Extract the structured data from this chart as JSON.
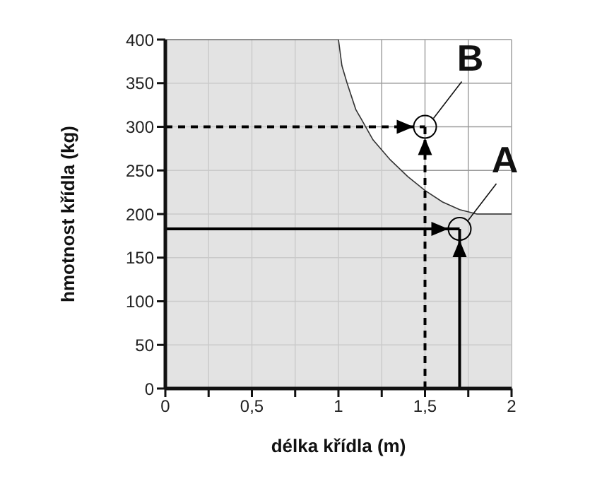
{
  "chart_data": {
    "type": "area",
    "xlabel": "délka křídla (m)",
    "ylabel": "hmotnost křídla (kg)",
    "xlim": [
      0,
      2
    ],
    "ylim": [
      0,
      400
    ],
    "xticks": [
      0,
      {
        "value": 0.25,
        "label": null
      },
      {
        "value": 0.5,
        "label": "0,5"
      },
      {
        "value": 0.75,
        "label": null
      },
      1,
      {
        "value": 1.25,
        "label": null
      },
      {
        "value": 1.5,
        "label": "1,5"
      },
      {
        "value": 1.75,
        "label": null
      },
      2
    ],
    "yticks": [
      0,
      50,
      100,
      150,
      200,
      250,
      300,
      350,
      400
    ],
    "grid": true,
    "legend": false,
    "series": [
      {
        "color": "#d9d9d9",
        "x": [
          0,
          1,
          1.02,
          1.05,
          1.1,
          1.2,
          1.3,
          1.4,
          1.5,
          1.6,
          1.7,
          1.8,
          2
        ],
        "values": [
          400,
          400,
          370,
          350,
          320,
          285,
          262,
          243,
          227,
          214,
          205,
          200,
          200
        ]
      },
      {
        "type": "line",
        "color": "#000000",
        "line_style": "dashed",
        "marker": "none",
        "x": [
          0,
          1.5
        ],
        "values": [
          300,
          300
        ]
      },
      {
        "type": "line",
        "color": "#000000",
        "line_style": "dashed",
        "marker": "none",
        "x": [
          1.5,
          1.5
        ],
        "values": [
          0,
          300
        ]
      },
      {
        "type": "line",
        "color": "#000000",
        "line_style": "solid",
        "marker": "none",
        "x": [
          0,
          1.7
        ],
        "values": [
          183,
          183
        ]
      },
      {
        "type": "line",
        "color": "#000000",
        "line_style": "solid",
        "marker": "none",
        "x": [
          1.7,
          1.7
        ],
        "values": [
          0,
          183
        ]
      },
      {
        "type": "scatter",
        "color": "#000000",
        "marker": "circle",
        "x": [
          1.5
        ],
        "values": [
          300
        ]
      },
      {
        "type": "scatter",
        "color": "#000000",
        "marker": "circle",
        "x": [
          1.7
        ],
        "values": [
          183
        ]
      }
    ],
    "annotations": [
      {
        "text": "B",
        "x": 1.5,
        "y": 300
      },
      {
        "text": "A",
        "x": 1.7,
        "y": 183
      }
    ]
  }
}
